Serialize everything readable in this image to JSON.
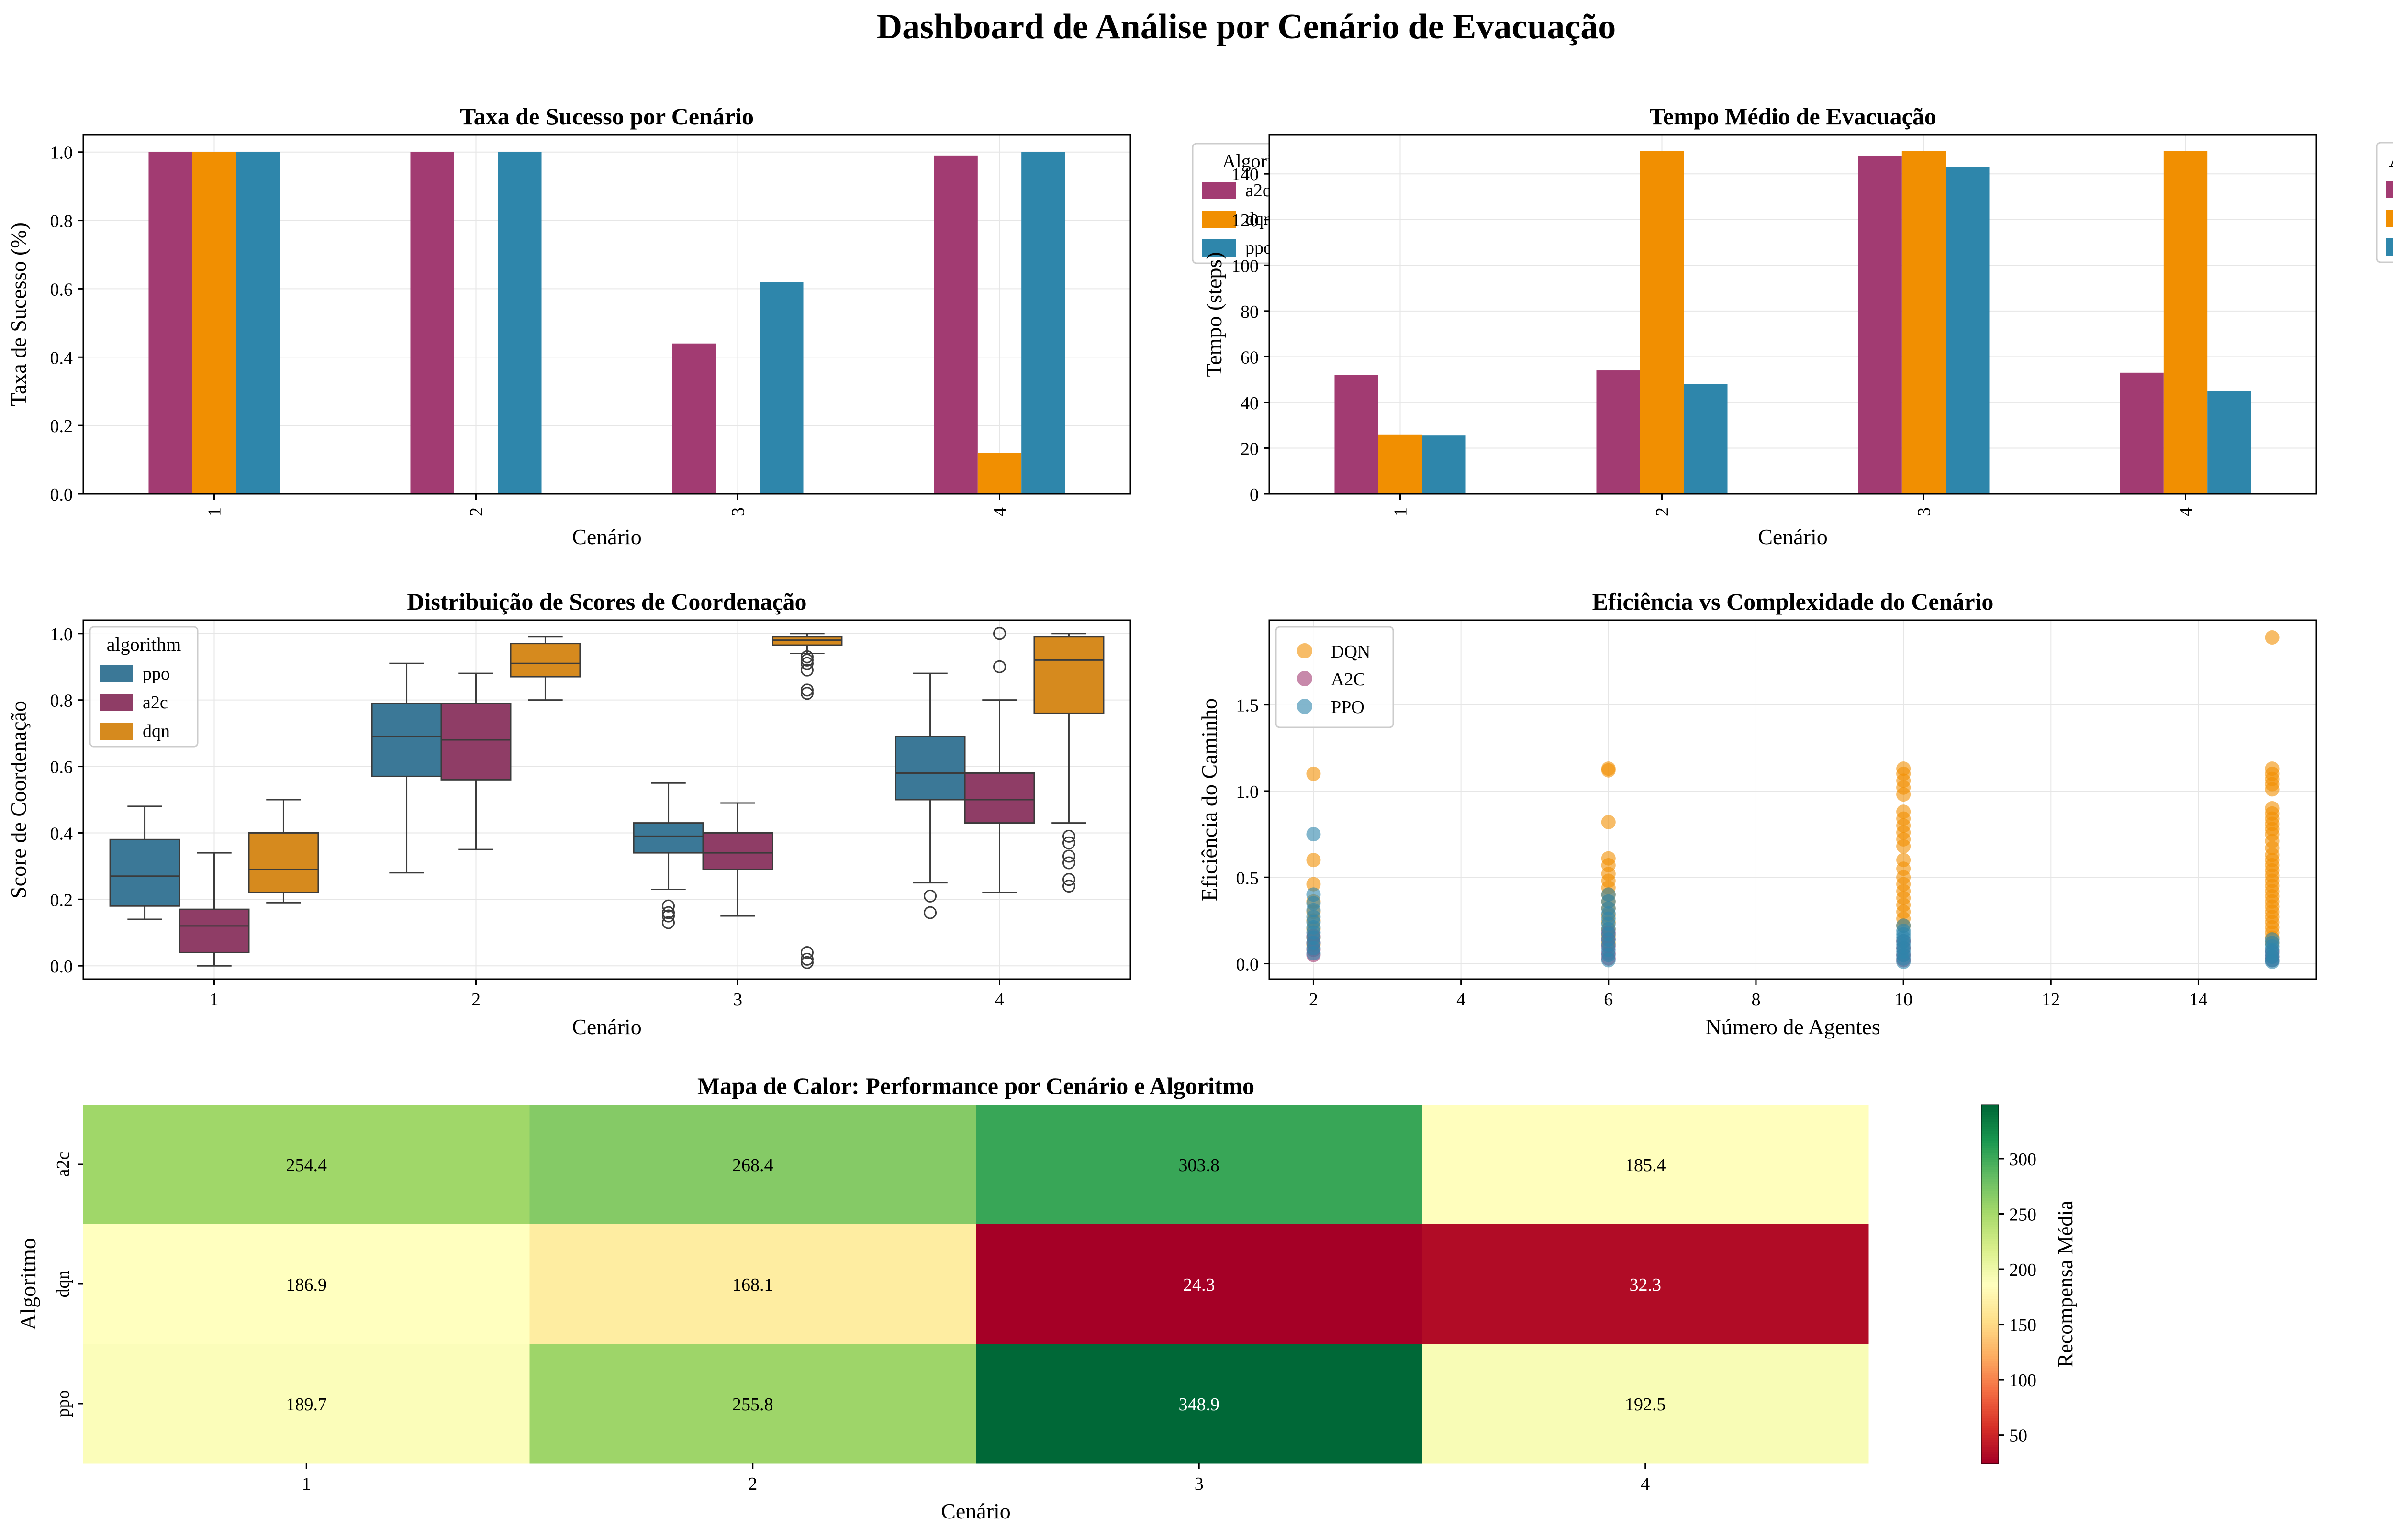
{
  "suptitle": "Dashboard de Análise por Cenário de Evacuação",
  "colors": {
    "a2c": "#A23B72",
    "dqn": "#F18F01",
    "ppo": "#2E86AB",
    "ppo_box": "#3B7897",
    "a2c_box": "#8F3D66",
    "dqn_box": "#D68A1E",
    "grid": "#E6E6E6",
    "heat_low": "#A50026",
    "heat_mid": "#FFFFBF",
    "heat_high": "#006837"
  },
  "chart_data": [
    {
      "id": "success",
      "type": "bar",
      "title": "Taxa de Sucesso por Cenário",
      "xlabel": "Cenário",
      "ylabel": "Taxa de Sucesso (%)",
      "categories": [
        "1",
        "2",
        "3",
        "4"
      ],
      "ylim": [
        0,
        1.05
      ],
      "yticks": [
        "0.0",
        "0.2",
        "0.4",
        "0.6",
        "0.8",
        "1.0"
      ],
      "series": [
        {
          "key": "a2c",
          "values": [
            1.0,
            1.0,
            0.44,
            0.99
          ]
        },
        {
          "key": "dqn",
          "values": [
            1.0,
            0.0,
            0.0,
            0.12
          ]
        },
        {
          "key": "ppo",
          "values": [
            1.0,
            1.0,
            0.62,
            1.0
          ]
        }
      ],
      "legend": {
        "title": "Algoritmo",
        "entries": [
          "a2c",
          "dqn",
          "ppo"
        ],
        "placement": "top-right (overlapping)"
      }
    },
    {
      "id": "time",
      "type": "bar",
      "title": "Tempo Médio de Evacuação",
      "xlabel": "Cenário",
      "ylabel": "Tempo (steps)",
      "categories": [
        "1",
        "2",
        "3",
        "4"
      ],
      "ylim": [
        0,
        157
      ],
      "yticks": [
        "0",
        "20",
        "40",
        "60",
        "80",
        "100",
        "120",
        "140"
      ],
      "series": [
        {
          "name": "a2c",
          "key": "a2c",
          "values": [
            52,
            54,
            148,
            53
          ]
        },
        {
          "name": "dqn",
          "key": "dqn",
          "values": [
            26,
            150,
            150,
            150
          ]
        },
        {
          "name": "ppo",
          "key": "ppo",
          "values": [
            25.5,
            48,
            143,
            45
          ]
        }
      ],
      "legend": {
        "title": "Algoritmo",
        "entries": [
          "a2c",
          "dqn",
          "ppo"
        ],
        "placement": "outside right"
      }
    },
    {
      "id": "coord",
      "type": "box",
      "title": "Distribuição de Scores de Coordenação",
      "xlabel": "Cenário",
      "ylabel": "Score de Coordenação",
      "categories": [
        "1",
        "2",
        "3",
        "4"
      ],
      "ylim": [
        -0.04,
        1.04
      ],
      "yticks": [
        "0.0",
        "0.2",
        "0.4",
        "0.6",
        "0.8",
        "1.0"
      ],
      "legend": {
        "title": "algorithm",
        "entries": [
          "ppo",
          "a2c",
          "dqn"
        ],
        "placement": "upper left"
      },
      "series": [
        {
          "name": "ppo",
          "key": "ppo_box",
          "boxes": [
            {
              "q1": 0.18,
              "med": 0.27,
              "q3": 0.38,
              "lo": 0.14,
              "hi": 0.48,
              "outliers": []
            },
            {
              "q1": 0.57,
              "med": 0.69,
              "q3": 0.79,
              "lo": 0.28,
              "hi": 0.91,
              "outliers": []
            },
            {
              "q1": 0.34,
              "med": 0.39,
              "q3": 0.43,
              "lo": 0.23,
              "hi": 0.55,
              "outliers": [
                0.18,
                0.16,
                0.15,
                0.13
              ]
            },
            {
              "q1": 0.5,
              "med": 0.58,
              "q3": 0.69,
              "lo": 0.25,
              "hi": 0.88,
              "outliers": [
                0.21,
                0.16
              ]
            }
          ]
        },
        {
          "name": "a2c",
          "key": "a2c_box",
          "boxes": [
            {
              "q1": 0.04,
              "med": 0.12,
              "q3": 0.17,
              "lo": 0.0,
              "hi": 0.34,
              "outliers": []
            },
            {
              "q1": 0.56,
              "med": 0.68,
              "q3": 0.79,
              "lo": 0.35,
              "hi": 0.88,
              "outliers": []
            },
            {
              "q1": 0.29,
              "med": 0.34,
              "q3": 0.4,
              "lo": 0.15,
              "hi": 0.49,
              "outliers": []
            },
            {
              "q1": 0.43,
              "med": 0.5,
              "q3": 0.58,
              "lo": 0.22,
              "hi": 0.8,
              "outliers": [
                0.9,
                1.0
              ]
            }
          ]
        },
        {
          "name": "dqn",
          "key": "dqn_box",
          "boxes": [
            {
              "q1": 0.22,
              "med": 0.29,
              "q3": 0.4,
              "lo": 0.19,
              "hi": 0.5,
              "outliers": []
            },
            {
              "q1": 0.87,
              "med": 0.91,
              "q3": 0.97,
              "lo": 0.8,
              "hi": 0.99,
              "outliers": []
            },
            {
              "q1": 0.965,
              "med": 0.98,
              "q3": 0.99,
              "lo": 0.94,
              "hi": 1.0,
              "outliers": [
                0.93,
                0.92,
                0.91,
                0.89,
                0.83,
                0.82,
                0.04,
                0.02,
                0.01
              ]
            },
            {
              "q1": 0.76,
              "med": 0.92,
              "q3": 0.99,
              "lo": 0.43,
              "hi": 1.0,
              "outliers": [
                0.39,
                0.37,
                0.33,
                0.31,
                0.26,
                0.24
              ]
            }
          ]
        }
      ]
    },
    {
      "id": "efficiency",
      "type": "scatter",
      "title": "Eficiência vs Complexidade do Cenário",
      "xlabel": "Número de Agentes",
      "ylabel": "Eficiência do Caminho",
      "xlim": [
        1.4,
        15.6
      ],
      "ylim": [
        -0.09,
        1.99
      ],
      "xticks": [
        2,
        4,
        6,
        8,
        10,
        12,
        14
      ],
      "yticks": [
        0.0,
        0.5,
        1.0,
        1.5
      ],
      "legend": {
        "entries": [
          "DQN",
          "A2C",
          "PPO"
        ],
        "placement": "upper left"
      },
      "series": [
        {
          "name": "DQN",
          "key": "dqn",
          "points": [
            [
              2,
              1.1
            ],
            [
              2,
              0.6
            ],
            [
              2,
              0.46
            ],
            [
              2,
              0.36
            ],
            [
              2,
              0.3
            ],
            [
              2,
              0.25
            ],
            [
              2,
              0.2
            ],
            [
              2,
              0.15
            ],
            [
              2,
              0.11
            ],
            [
              6,
              1.13
            ],
            [
              6,
              1.12
            ],
            [
              6,
              0.82
            ],
            [
              6,
              0.61
            ],
            [
              6,
              0.57
            ],
            [
              6,
              0.52
            ],
            [
              6,
              0.48
            ],
            [
              6,
              0.44
            ],
            [
              6,
              0.4
            ],
            [
              6,
              0.36
            ],
            [
              6,
              0.32
            ],
            [
              6,
              0.28
            ],
            [
              6,
              0.24
            ],
            [
              6,
              0.2
            ],
            [
              6,
              0.16
            ],
            [
              6,
              0.12
            ],
            [
              10,
              1.13
            ],
            [
              10,
              1.1
            ],
            [
              10,
              1.06
            ],
            [
              10,
              1.02
            ],
            [
              10,
              0.98
            ],
            [
              10,
              0.88
            ],
            [
              10,
              0.84
            ],
            [
              10,
              0.8
            ],
            [
              10,
              0.76
            ],
            [
              10,
              0.72
            ],
            [
              10,
              0.68
            ],
            [
              10,
              0.6
            ],
            [
              10,
              0.55
            ],
            [
              10,
              0.5
            ],
            [
              10,
              0.46
            ],
            [
              10,
              0.42
            ],
            [
              10,
              0.38
            ],
            [
              10,
              0.34
            ],
            [
              10,
              0.3
            ],
            [
              10,
              0.26
            ],
            [
              10,
              0.22
            ],
            [
              15,
              1.89
            ],
            [
              15,
              1.13
            ],
            [
              15,
              1.1
            ],
            [
              15,
              1.07
            ],
            [
              15,
              1.04
            ],
            [
              15,
              1.01
            ],
            [
              15,
              0.9
            ],
            [
              15,
              0.87
            ],
            [
              15,
              0.84
            ],
            [
              15,
              0.81
            ],
            [
              15,
              0.78
            ],
            [
              15,
              0.75
            ],
            [
              15,
              0.71
            ],
            [
              15,
              0.67
            ],
            [
              15,
              0.63
            ],
            [
              15,
              0.6
            ],
            [
              15,
              0.57
            ],
            [
              15,
              0.54
            ],
            [
              15,
              0.51
            ],
            [
              15,
              0.48
            ],
            [
              15,
              0.45
            ],
            [
              15,
              0.42
            ],
            [
              15,
              0.39
            ],
            [
              15,
              0.36
            ],
            [
              15,
              0.33
            ],
            [
              15,
              0.3
            ],
            [
              15,
              0.27
            ],
            [
              15,
              0.24
            ],
            [
              15,
              0.21
            ],
            [
              15,
              0.18
            ],
            [
              15,
              0.15
            ],
            [
              15,
              0.12
            ]
          ]
        },
        {
          "name": "A2C",
          "key": "a2c",
          "points": [
            [
              2,
              0.05
            ],
            [
              2,
              0.08
            ],
            [
              2,
              0.12
            ],
            [
              2,
              0.16
            ],
            [
              6,
              0.03
            ],
            [
              6,
              0.06
            ],
            [
              6,
              0.1
            ],
            [
              6,
              0.14
            ],
            [
              6,
              0.18
            ],
            [
              10,
              0.02
            ],
            [
              10,
              0.05
            ],
            [
              10,
              0.09
            ],
            [
              10,
              0.13
            ],
            [
              15,
              0.02
            ],
            [
              15,
              0.04
            ],
            [
              15,
              0.07
            ]
          ]
        },
        {
          "name": "PPO",
          "key": "ppo",
          "points": [
            [
              2,
              0.75
            ],
            [
              2,
              0.4
            ],
            [
              2,
              0.35
            ],
            [
              2,
              0.31
            ],
            [
              2,
              0.27
            ],
            [
              2,
              0.24
            ],
            [
              2,
              0.21
            ],
            [
              2,
              0.18
            ],
            [
              2,
              0.15
            ],
            [
              2,
              0.12
            ],
            [
              2,
              0.09
            ],
            [
              2,
              0.06
            ],
            [
              6,
              0.4
            ],
            [
              6,
              0.36
            ],
            [
              6,
              0.32
            ],
            [
              6,
              0.29
            ],
            [
              6,
              0.26
            ],
            [
              6,
              0.23
            ],
            [
              6,
              0.2
            ],
            [
              6,
              0.17
            ],
            [
              6,
              0.14
            ],
            [
              6,
              0.11
            ],
            [
              6,
              0.08
            ],
            [
              6,
              0.05
            ],
            [
              6,
              0.02
            ],
            [
              10,
              0.22
            ],
            [
              10,
              0.19
            ],
            [
              10,
              0.17
            ],
            [
              10,
              0.15
            ],
            [
              10,
              0.13
            ],
            [
              10,
              0.11
            ],
            [
              10,
              0.09
            ],
            [
              10,
              0.07
            ],
            [
              10,
              0.05
            ],
            [
              10,
              0.03
            ],
            [
              10,
              0.01
            ],
            [
              15,
              0.14
            ],
            [
              15,
              0.12
            ],
            [
              15,
              0.1
            ],
            [
              15,
              0.08
            ],
            [
              15,
              0.06
            ],
            [
              15,
              0.04
            ],
            [
              15,
              0.02
            ],
            [
              15,
              0.01
            ]
          ]
        }
      ]
    },
    {
      "id": "heatmap",
      "type": "heatmap",
      "title": "Mapa de Calor: Performance por Cenário e Algoritmo",
      "xlabel": "Cenário",
      "ylabel": "Algoritmo",
      "colorbar_label": "Recompensa Média",
      "x": [
        "1",
        "2",
        "3",
        "4"
      ],
      "y": [
        "a2c",
        "dqn",
        "ppo"
      ],
      "values": [
        [
          254.4,
          268.4,
          303.8,
          185.4
        ],
        [
          186.9,
          168.1,
          24.3,
          32.3
        ],
        [
          189.7,
          255.8,
          348.9,
          192.5
        ]
      ],
      "labels": [
        [
          "254.4",
          "268.4",
          "303.8",
          "185.4"
        ],
        [
          "186.9",
          "168.1",
          "24.3",
          "32.3"
        ],
        [
          "189.7",
          "255.8",
          "348.9",
          "192.5"
        ]
      ],
      "vmin": 24.3,
      "vmax": 348.9,
      "colorbar_ticks": [
        "50",
        "100",
        "150",
        "200",
        "250",
        "300"
      ],
      "colormap": "RdYlGn"
    }
  ]
}
